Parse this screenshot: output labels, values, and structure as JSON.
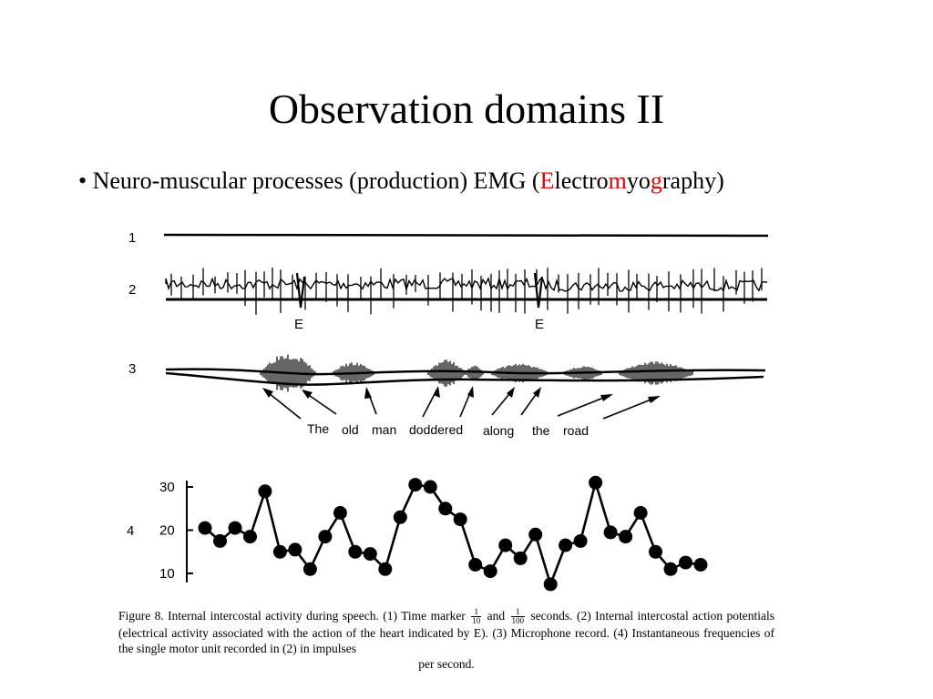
{
  "slide": {
    "title": "Observation domains II",
    "bullet": {
      "prefix": "• Neuro-muscular processes  (production) EMG (",
      "parts": [
        {
          "text": "E",
          "red": true
        },
        {
          "text": "lectro",
          "red": false
        },
        {
          "text": "m",
          "red": true
        },
        {
          "text": "yo",
          "red": false
        },
        {
          "text": "g",
          "red": true
        },
        {
          "text": "raphy",
          "red": false
        }
      ],
      "suffix": ")"
    }
  },
  "figure": {
    "trace_labels": [
      "1",
      "2",
      "3",
      "4"
    ],
    "heart_marker": "E",
    "words": [
      "The",
      "old",
      "man",
      "doddered",
      "along",
      "the",
      "road"
    ],
    "caption": {
      "part1": "Figure 8. Internal intercostal activity during speech. (1) Time marker",
      "frac1_num": "1",
      "frac1_den": "10",
      "and": "and",
      "frac2_num": "1",
      "frac2_den": "100",
      "part2": "seconds. (2) Internal intercostal action potentials (electrical activity associated with the action of the heart indicated by E). (3) Microphone record. (4) Instantaneous frequencies of the single motor unit recorded in (2) in impulses",
      "last_line": "per second."
    }
  },
  "chart_data": {
    "type": "line",
    "ylim": [
      7,
      32
    ],
    "yticks": [
      "30",
      "20",
      "10"
    ],
    "series": [
      {
        "values": [
          20.5,
          17.5,
          20.5,
          18.5,
          29,
          15,
          15.5,
          11,
          18.5,
          24,
          15,
          14.5,
          11,
          23,
          30.5,
          30,
          25,
          22.5,
          12,
          10.5,
          16.5,
          13.5,
          19,
          7.5,
          16.5,
          17.5,
          31,
          19.5,
          18.5,
          24,
          15,
          11,
          12.5,
          12
        ]
      }
    ]
  }
}
